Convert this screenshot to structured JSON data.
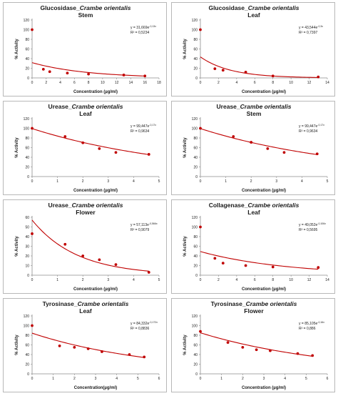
{
  "colors": {
    "series": "#c00000",
    "axis": "#8c8c8c",
    "text": "#1a1a1a",
    "border": "#b8b8b8"
  },
  "chart_data": [
    {
      "type": "scatter",
      "title_prefix": "Glucosidase_",
      "title_species": "Crambe orientalis",
      "subtitle": "Stem",
      "xlabel": "Concentration (µg/ml)",
      "ylabel": "% Activity",
      "xlim": [
        0,
        18
      ],
      "ylim": [
        0,
        120
      ],
      "xticks": [
        0,
        2,
        4,
        6,
        8,
        10,
        12,
        14,
        16,
        18
      ],
      "yticks": [
        0,
        20,
        40,
        60,
        80,
        100,
        120
      ],
      "equation_base": "y = 31,669e",
      "equation_exp": "-0,13x",
      "r2": "R² = 0,5234",
      "fit": {
        "a": 31.669,
        "b": -0.13
      },
      "series": [
        {
          "x": [
            0,
            1.6,
            2.5,
            5,
            8,
            13,
            16
          ],
          "y": [
            100,
            18,
            13,
            10,
            8,
            6,
            4
          ]
        }
      ]
    },
    {
      "type": "scatter",
      "title_prefix": "Glucosidase_",
      "title_species": "Crambe orientalis",
      "subtitle": "Leaf",
      "xlabel": "Concentration (µg/ml)",
      "ylabel": "% Activity",
      "xlim": [
        0,
        14
      ],
      "ylim": [
        0,
        120
      ],
      "xticks": [
        0,
        2,
        4,
        6,
        8,
        10,
        12,
        14
      ],
      "yticks": [
        0,
        20,
        40,
        60,
        80,
        100,
        120
      ],
      "equation_base": "y = 43,544e",
      "equation_exp": "-0,3x",
      "r2": "R² = 0,7397",
      "fit": {
        "a": 43.544,
        "b": -0.3
      },
      "series": [
        {
          "x": [
            0,
            1.6,
            2.5,
            5,
            8,
            13
          ],
          "y": [
            100,
            19,
            16,
            12,
            4,
            2
          ]
        }
      ]
    },
    {
      "type": "scatter",
      "title_prefix": "Urease_",
      "title_species": "Crambe orientalis",
      "subtitle": "Leaf",
      "xlabel": "Concentration (µg/ml)",
      "ylabel": "% Activity",
      "xlim": [
        0,
        5
      ],
      "ylim": [
        0,
        120
      ],
      "xticks": [
        0,
        1,
        2,
        3,
        4,
        5
      ],
      "yticks": [
        0,
        20,
        40,
        60,
        80,
        100,
        120
      ],
      "equation_base": "y = 99,447e",
      "equation_exp": "-0,17x",
      "r2": "R² = 0,9634",
      "fit": {
        "a": 99.447,
        "b": -0.17
      },
      "series": [
        {
          "x": [
            0,
            1.3,
            2,
            2.65,
            3.3,
            4.6
          ],
          "y": [
            100,
            83,
            70,
            58,
            50,
            46
          ]
        }
      ]
    },
    {
      "type": "scatter",
      "title_prefix": "Urease_",
      "title_species": "Crambe orientalis",
      "subtitle": "Stem",
      "xlabel": "Concentration (µg/ml)",
      "ylabel": "% Activity",
      "xlim": [
        0,
        5
      ],
      "ylim": [
        0,
        120
      ],
      "xticks": [
        0,
        1,
        2,
        3,
        4,
        5
      ],
      "yticks": [
        0,
        20,
        40,
        60,
        80,
        100,
        120
      ],
      "equation_base": "y = 99,447e",
      "equation_exp": "-0,17x",
      "r2": "R² = 0,9634",
      "fit": {
        "a": 99.447,
        "b": -0.17
      },
      "series": [
        {
          "x": [
            0,
            1.3,
            2,
            2.65,
            3.3,
            4.6
          ],
          "y": [
            100,
            83,
            71,
            58,
            50,
            47
          ]
        }
      ]
    },
    {
      "type": "scatter",
      "title_prefix": "Urease_",
      "title_species": "Crambe orientalis",
      "subtitle": "Flower",
      "xlabel": "Concentration (µg/ml)",
      "ylabel": "% Activity",
      "xlim": [
        0,
        5
      ],
      "ylim": [
        0,
        60
      ],
      "xticks": [
        0,
        1,
        2,
        3,
        4,
        5
      ],
      "yticks": [
        0,
        10,
        20,
        30,
        40,
        50,
        60
      ],
      "equation_base": "y = 57,113e",
      "equation_exp": "-0,566x",
      "r2": "R² = 0,9079",
      "fit": {
        "a": 57.113,
        "b": -0.566
      },
      "series": [
        {
          "x": [
            0,
            1.3,
            2,
            2.65,
            3.3,
            4.6
          ],
          "y": [
            43,
            32,
            20,
            16,
            11,
            3
          ]
        }
      ]
    },
    {
      "type": "scatter",
      "title_prefix": "Collagenase_",
      "title_species": "Crambe orientalis",
      "subtitle": "Leaf",
      "xlabel": "Concentration (µg/ml)",
      "ylabel": "% Activity",
      "xlim": [
        0,
        14
      ],
      "ylim": [
        0,
        120
      ],
      "xticks": [
        0,
        2,
        4,
        6,
        8,
        10,
        12,
        14
      ],
      "yticks": [
        0,
        20,
        40,
        60,
        80,
        100,
        120
      ],
      "equation_base": "y = 49,052e",
      "equation_exp": "-0,106x",
      "r2": "R² = 0,5695",
      "fit": {
        "a": 49.052,
        "b": -0.106
      },
      "series": [
        {
          "x": [
            0,
            1.6,
            2.5,
            5,
            8,
            13
          ],
          "y": [
            100,
            35,
            25,
            20,
            17,
            16
          ]
        }
      ]
    },
    {
      "type": "scatter",
      "title_prefix": "Tyrosinase_",
      "title_species": "Crambe orientalis",
      "subtitle": "Leaf",
      "xlabel": "Concentration(µg/ml)",
      "ylabel": "% Activity",
      "xlim": [
        0,
        6
      ],
      "ylim": [
        0,
        120
      ],
      "xticks": [
        0,
        1,
        2,
        3,
        4,
        5,
        6
      ],
      "yticks": [
        0,
        20,
        40,
        60,
        80,
        100,
        120
      ],
      "equation_base": "y = 84,332e",
      "equation_exp": "-0,172x",
      "r2": "R² = 0,8836",
      "fit": {
        "a": 84.332,
        "b": -0.172
      },
      "series": [
        {
          "x": [
            0,
            1.3,
            2,
            2.65,
            3.3,
            4.6,
            5.3
          ],
          "y": [
            100,
            58,
            55,
            52,
            46,
            40,
            35
          ]
        }
      ]
    },
    {
      "type": "scatter",
      "title_prefix": "Tyrosinase_",
      "title_species": "Crambe orientalis",
      "subtitle": "Flower",
      "xlabel": "Concentration (µg/ml)",
      "ylabel": "% Activity",
      "xlim": [
        0,
        6
      ],
      "ylim": [
        0,
        120
      ],
      "xticks": [
        0,
        1,
        2,
        3,
        4,
        5,
        6
      ],
      "yticks": [
        0,
        20,
        40,
        60,
        80,
        100,
        120
      ],
      "equation_base": "y = 85,105e",
      "equation_exp": "-0,16x",
      "r2": "R² = 0,886",
      "fit": {
        "a": 85.105,
        "b": -0.16
      },
      "series": [
        {
          "x": [
            0,
            1.3,
            2,
            2.65,
            3.3,
            4.6,
            5.3
          ],
          "y": [
            88,
            65,
            55,
            50,
            48,
            42,
            38
          ]
        }
      ]
    }
  ]
}
